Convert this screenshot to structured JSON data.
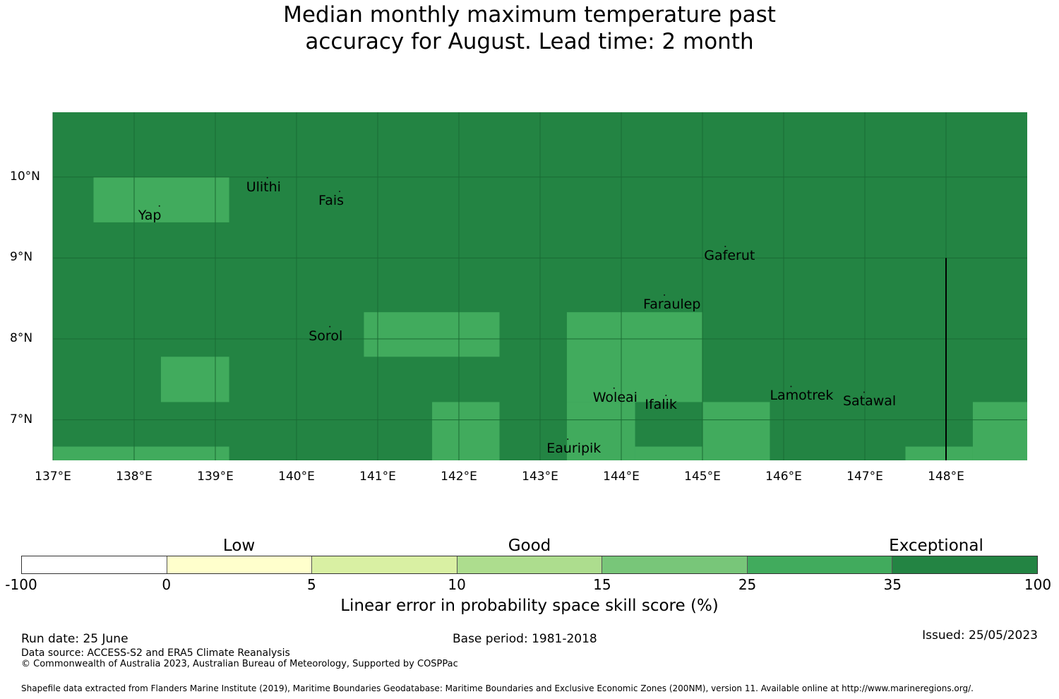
{
  "title": {
    "line1": "Median monthly maximum temperature past",
    "line2": "accuracy for August. Lead time: 2 month"
  },
  "map": {
    "lat_ticks": [
      "10°N",
      "9°N",
      "8°N",
      "7°N"
    ],
    "lon_ticks": [
      "137°E",
      "138°E",
      "139°E",
      "140°E",
      "141°E",
      "142°E",
      "143°E",
      "144°E",
      "145°E",
      "146°E",
      "147°E",
      "148°E"
    ],
    "extent": {
      "lon_min": 137,
      "lon_max": 149,
      "lat_min": 6.5,
      "lat_max": 10.8
    },
    "colors": {
      "exceptional": "#238443",
      "good_25_35": "#41ab5d",
      "grid": "#1a6b34"
    },
    "cells_25_35": [
      {
        "lon": [
          137.5,
          139.17
        ],
        "lat": [
          9.44,
          10.0
        ]
      },
      {
        "lon": [
          138.33,
          139.17
        ],
        "lat": [
          7.22,
          7.78
        ]
      },
      {
        "lon": [
          137.0,
          139.17
        ],
        "lat": [
          6.5,
          6.67
        ]
      },
      {
        "lon": [
          140.83,
          142.5
        ],
        "lat": [
          7.78,
          8.33
        ]
      },
      {
        "lon": [
          141.67,
          142.5
        ],
        "lat": [
          6.5,
          7.22
        ]
      },
      {
        "lon": [
          143.33,
          145.0
        ],
        "lat": [
          7.22,
          8.33
        ]
      },
      {
        "lon": [
          143.33,
          144.17
        ],
        "lat": [
          6.5,
          7.22
        ]
      },
      {
        "lon": [
          144.17,
          145.0
        ],
        "lat": [
          6.5,
          6.67
        ]
      },
      {
        "lon": [
          145.0,
          145.83
        ],
        "lat": [
          6.5,
          7.22
        ]
      },
      {
        "lon": [
          147.5,
          148.33
        ],
        "lat": [
          6.5,
          6.67
        ]
      },
      {
        "lon": [
          148.33,
          149.0
        ],
        "lat": [
          6.5,
          7.22
        ]
      }
    ],
    "places": [
      {
        "name": "Yap",
        "lon": 138.05,
        "lat": 9.52
      },
      {
        "name": "Ulithi",
        "lon": 139.38,
        "lat": 9.87
      },
      {
        "name": "Fais",
        "lon": 140.27,
        "lat": 9.7
      },
      {
        "name": "Gaferut",
        "lon": 145.02,
        "lat": 9.02
      },
      {
        "name": "Faraulep",
        "lon": 144.27,
        "lat": 8.42
      },
      {
        "name": "Sorol",
        "lon": 140.15,
        "lat": 8.03
      },
      {
        "name": "Woleai",
        "lon": 143.65,
        "lat": 7.27
      },
      {
        "name": "Ifalik",
        "lon": 144.29,
        "lat": 7.18
      },
      {
        "name": "Lamotrek",
        "lon": 145.83,
        "lat": 7.29
      },
      {
        "name": "Satawal",
        "lon": 146.73,
        "lat": 7.22
      },
      {
        "name": "Eauripik",
        "lon": 143.08,
        "lat": 6.64
      }
    ],
    "eez_line": {
      "lon": 148.0,
      "lat_from": 6.5,
      "lat_to": 9.0
    }
  },
  "colorbar": {
    "categories": [
      {
        "label": "Low",
        "center_segment": 1.5
      },
      {
        "label": "Good",
        "center_segment": 3.5
      },
      {
        "label": "Exceptional",
        "center_segment": 6.3
      }
    ],
    "segment_colors": [
      "#ffffff",
      "#ffffcc",
      "#d9f0a3",
      "#addd8e",
      "#78c679",
      "#41ab5d",
      "#238443"
    ],
    "ticks": [
      "-100",
      "0",
      "5",
      "10",
      "15",
      "25",
      "35",
      "100"
    ],
    "label": "Linear error in probability space skill score (%)"
  },
  "footer": {
    "run_date": "Run date: 25 June",
    "base_period": "Base period: 1981-2018",
    "issued": "Issued: 25/05/2023",
    "data_source": "Data source: ACCESS-S2 and ERA5 Climate Reanalysis",
    "copyright": "© Commonwealth of Australia 2023, Australian Bureau of Meteorology, Supported by COSPPac",
    "shapefile": "Shapefile data extracted from Flanders Marine Institute (2019), Maritime Boundaries Geodatabase: Maritime Boundaries and Exclusive Economic Zones (200NM), version 11. Available online at http://www.marineregions.org/."
  }
}
